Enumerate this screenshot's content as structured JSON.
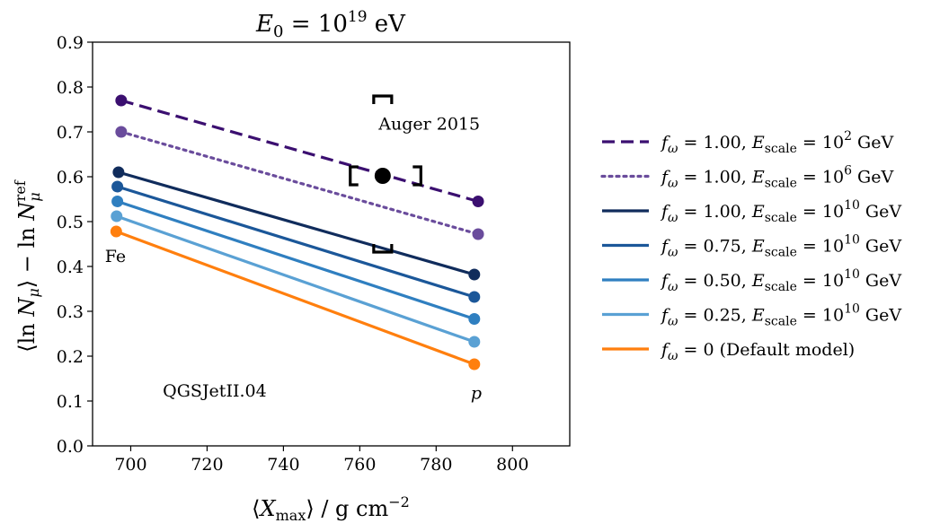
{
  "chart_data": {
    "type": "line",
    "title": "E₀ = 10¹⁹ eV",
    "xlabel": "⟨X_max⟩ / g cm⁻²",
    "ylabel": "⟨ln N_μ⟩ − ln N_μ^ref",
    "xlim": [
      690,
      815
    ],
    "ylim": [
      0.0,
      0.9
    ],
    "xticks": [
      700,
      720,
      740,
      760,
      780,
      800
    ],
    "yticks": [
      0.0,
      0.1,
      0.2,
      0.3,
      0.4,
      0.5,
      0.6,
      0.7,
      0.8,
      0.9
    ],
    "grid": false,
    "legend_position": "outside-right",
    "series": [
      {
        "name": "f_ω = 1.00, E_scale = 10² GeV",
        "style": "dashed",
        "color": "#3b0f70",
        "x": [
          697.5,
          791.0
        ],
        "y": [
          0.77,
          0.545
        ]
      },
      {
        "name": "f_ω = 1.00, E_scale = 10⁶ GeV",
        "style": "dotted",
        "color": "#6a4c9c",
        "x": [
          697.5,
          791.0
        ],
        "y": [
          0.7,
          0.472
        ]
      },
      {
        "name": "f_ω = 1.00, E_scale = 10¹⁰ GeV",
        "style": "solid",
        "color": "#102c5c",
        "x": [
          696.8,
          790.0
        ],
        "y": [
          0.61,
          0.382
        ]
      },
      {
        "name": "f_ω = 0.75, E_scale = 10¹⁰ GeV",
        "style": "solid",
        "color": "#1b5799",
        "x": [
          696.5,
          790.0
        ],
        "y": [
          0.578,
          0.332
        ]
      },
      {
        "name": "f_ω = 0.50, E_scale = 10¹⁰ GeV",
        "style": "solid",
        "color": "#2f7fc0",
        "x": [
          696.5,
          790.0
        ],
        "y": [
          0.545,
          0.283
        ]
      },
      {
        "name": "f_ω = 0.25, E_scale = 10¹⁰ GeV",
        "style": "solid",
        "color": "#5aa1d4",
        "x": [
          696.3,
          790.0
        ],
        "y": [
          0.512,
          0.232
        ]
      },
      {
        "name": "f_ω = 0 (Default model)",
        "style": "solid",
        "color": "#ff7f0e",
        "x": [
          696.2,
          790.0
        ],
        "y": [
          0.478,
          0.182
        ]
      }
    ],
    "measurement": {
      "label": "Auger 2015",
      "x": 766.0,
      "y": 0.602,
      "sys_x": [
        757.5,
        776.0
      ],
      "sys_y": [
        0.432,
        0.78
      ]
    },
    "annotations": [
      {
        "text": "Fe",
        "x": 696.0,
        "y": 0.41
      },
      {
        "text": "p",
        "x": 790.5,
        "y": 0.105
      },
      {
        "text": "QGSJetII.04",
        "x": 722.0,
        "y": 0.11
      }
    ]
  }
}
